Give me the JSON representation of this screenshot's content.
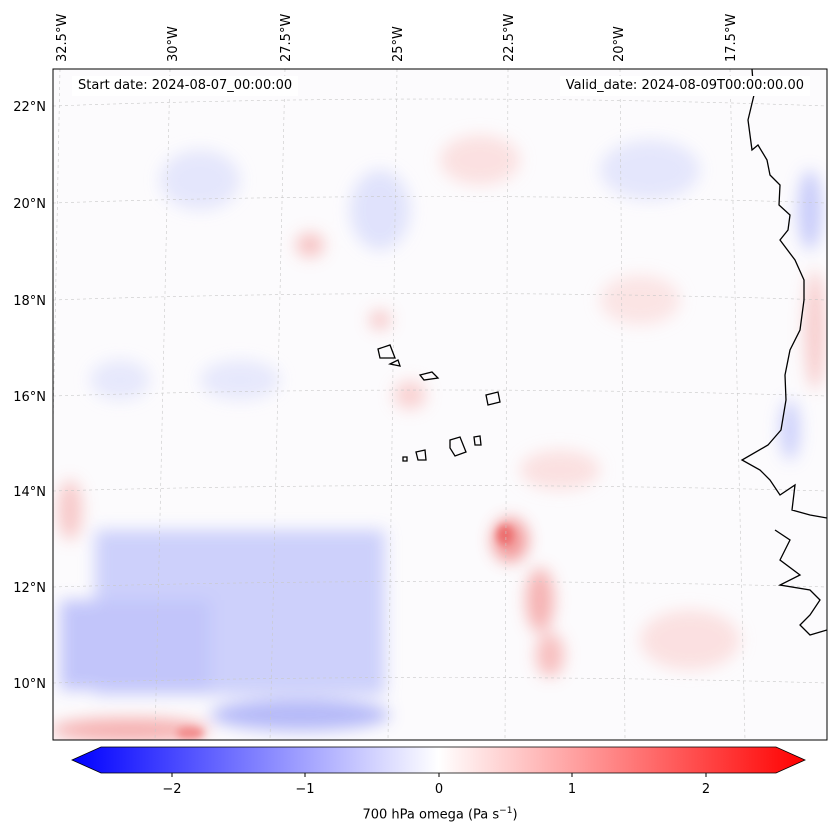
{
  "map": {
    "start_date": "Start date: 2024-08-07_00:00:00",
    "valid_date": "Valid_date: 2024-08-09T00:00:00.00",
    "lon_labels": [
      "32.5°W",
      "30°W",
      "27.5°W",
      "25°W",
      "22.5°W",
      "20°W",
      "17.5°W"
    ],
    "lat_labels": [
      "22°N",
      "20°N",
      "18°N",
      "16°N",
      "14°N",
      "12°N",
      "10°N"
    ],
    "colors": {
      "negative": "#0000ff",
      "positive": "#ff0000",
      "coast": "#000000"
    }
  },
  "colorbar": {
    "ticks": [
      "−2",
      "−1",
      "0",
      "1",
      "2"
    ],
    "title_prefix": "700 hPa omega (Pa s",
    "title_exp": "−1",
    "title_suffix": ")",
    "range": [
      -2.6,
      2.6
    ]
  }
}
